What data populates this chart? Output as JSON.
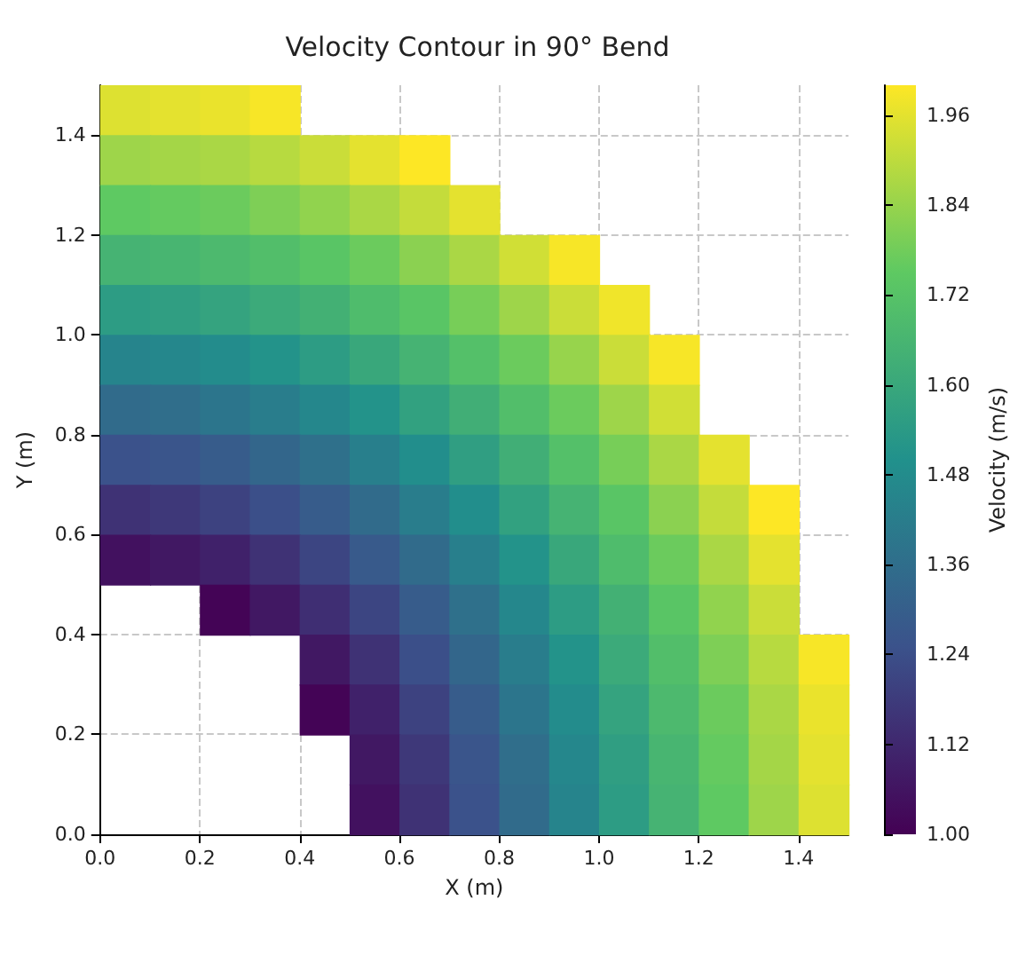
{
  "chart_data": {
    "type": "heatmap",
    "title": "Velocity Contour in 90° Bend",
    "xlabel": "X (m)",
    "ylabel": "Y (m)",
    "clabel": "Velocity (m/s)",
    "xlim": [
      0,
      1.5
    ],
    "ylim": [
      0,
      1.5
    ],
    "xticks": [
      {
        "value": 0,
        "label": "0.0"
      },
      {
        "value": 0.2,
        "label": "0.2"
      },
      {
        "value": 0.4,
        "label": "0.4"
      },
      {
        "value": 0.6,
        "label": "0.6"
      },
      {
        "value": 0.8,
        "label": "0.8"
      },
      {
        "value": 1,
        "label": "1.0"
      },
      {
        "value": 1.2,
        "label": "1.2"
      },
      {
        "value": 1.4,
        "label": "1.4"
      }
    ],
    "yticks": [
      {
        "value": 0,
        "label": "0.0"
      },
      {
        "value": 0.2,
        "label": "0.2"
      },
      {
        "value": 0.4,
        "label": "0.4"
      },
      {
        "value": 0.6,
        "label": "0.6"
      },
      {
        "value": 0.8,
        "label": "0.8"
      },
      {
        "value": 1,
        "label": "1.0"
      },
      {
        "value": 1.2,
        "label": "1.2"
      },
      {
        "value": 1.4,
        "label": "1.4"
      }
    ],
    "clim": [
      1,
      2
    ],
    "cticks": [
      {
        "value": 1,
        "label": "1.00"
      },
      {
        "value": 1.12,
        "label": "1.12"
      },
      {
        "value": 1.24,
        "label": "1.24"
      },
      {
        "value": 1.36,
        "label": "1.36"
      },
      {
        "value": 1.48,
        "label": "1.48"
      },
      {
        "value": 1.6,
        "label": "1.60"
      },
      {
        "value": 1.72,
        "label": "1.72"
      },
      {
        "value": 1.84,
        "label": "1.84"
      },
      {
        "value": 1.96,
        "label": "1.96"
      }
    ],
    "grid": true,
    "cells": [
      [
        1.95,
        1.96,
        1.97,
        1.99,
        null,
        null,
        null,
        null,
        null,
        null,
        null,
        null,
        null,
        null,
        null
      ],
      [
        1.85,
        1.86,
        1.87,
        1.89,
        1.92,
        1.96,
        2.0,
        null,
        null,
        null,
        null,
        null,
        null,
        null,
        null
      ],
      [
        1.75,
        1.76,
        1.77,
        1.8,
        1.83,
        1.87,
        1.91,
        1.96,
        null,
        null,
        null,
        null,
        null,
        null,
        null
      ],
      [
        1.65,
        1.66,
        1.68,
        1.7,
        1.73,
        1.77,
        1.82,
        1.87,
        1.93,
        1.99,
        null,
        null,
        null,
        null,
        null
      ],
      [
        1.55,
        1.56,
        1.58,
        1.61,
        1.64,
        1.69,
        1.73,
        1.79,
        1.85,
        1.92,
        1.98,
        null,
        null,
        null,
        null
      ],
      [
        1.45,
        1.46,
        1.48,
        1.51,
        1.55,
        1.6,
        1.65,
        1.71,
        1.77,
        1.84,
        1.92,
        1.99,
        null,
        null,
        null
      ],
      [
        1.35,
        1.36,
        1.39,
        1.42,
        1.46,
        1.51,
        1.57,
        1.63,
        1.7,
        1.77,
        1.85,
        1.93,
        null,
        null,
        null
      ],
      [
        1.25,
        1.26,
        1.29,
        1.33,
        1.37,
        1.43,
        1.49,
        1.56,
        1.63,
        1.71,
        1.79,
        1.87,
        1.96,
        null,
        null
      ],
      [
        1.15,
        1.17,
        1.2,
        1.24,
        1.29,
        1.35,
        1.42,
        1.49,
        1.57,
        1.65,
        1.73,
        1.82,
        1.91,
        2.0,
        null
      ],
      [
        1.05,
        1.07,
        1.1,
        1.15,
        1.21,
        1.28,
        1.35,
        1.43,
        1.51,
        1.6,
        1.69,
        1.77,
        1.87,
        1.96,
        null
      ],
      [
        null,
        null,
        1.01,
        1.07,
        1.14,
        1.21,
        1.29,
        1.37,
        1.46,
        1.55,
        1.64,
        1.73,
        1.83,
        1.92,
        null
      ],
      [
        null,
        null,
        null,
        null,
        1.07,
        1.15,
        1.24,
        1.33,
        1.42,
        1.51,
        1.61,
        1.7,
        1.8,
        1.89,
        1.99
      ],
      [
        null,
        null,
        null,
        null,
        1.01,
        1.1,
        1.2,
        1.29,
        1.39,
        1.48,
        1.58,
        1.68,
        1.77,
        1.87,
        1.97
      ],
      [
        null,
        null,
        null,
        null,
        null,
        1.07,
        1.17,
        1.26,
        1.36,
        1.46,
        1.56,
        1.66,
        1.76,
        1.86,
        1.96
      ],
      [
        null,
        null,
        null,
        null,
        null,
        1.05,
        1.15,
        1.25,
        1.35,
        1.45,
        1.55,
        1.65,
        1.75,
        1.85,
        1.95
      ]
    ]
  }
}
